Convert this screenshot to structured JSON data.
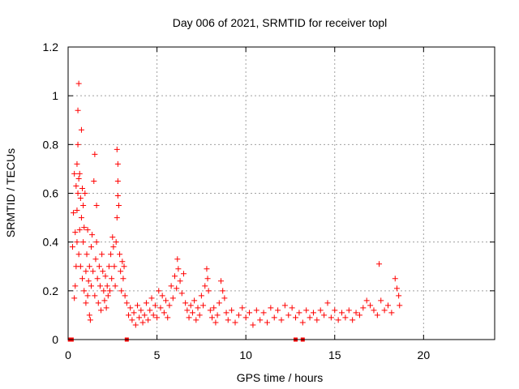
{
  "chart_data": {
    "type": "scatter",
    "title": "Day 006 of 2021, SRMTID for receiver topl",
    "xlabel": "GPS time / hours",
    "ylabel": "SRMTID / TECUs",
    "xlim": [
      0,
      24
    ],
    "ylim": [
      0,
      1.2
    ],
    "x_ticks": [
      0,
      5,
      10,
      15,
      20
    ],
    "y_ticks": [
      0,
      0.2,
      0.4,
      0.6,
      0.8,
      1,
      1.2
    ],
    "x_tick_labels": [
      "0",
      "5",
      "10",
      "15",
      "20"
    ],
    "y_tick_labels": [
      "0",
      "0.2",
      "0.4",
      "0.6",
      "0.8",
      "1",
      "1.2"
    ],
    "grid": true,
    "marker": "plus",
    "color": "#ff0000",
    "data_gap_markers_x": [
      0.1,
      0.2,
      3.3,
      12.8,
      13.2
    ],
    "series": [
      {
        "name": "SRMTID",
        "points": [
          [
            0.25,
            0.38
          ],
          [
            0.3,
            0.52
          ],
          [
            0.35,
            0.17
          ],
          [
            0.35,
            0.68
          ],
          [
            0.4,
            0.22
          ],
          [
            0.4,
            0.44
          ],
          [
            0.45,
            0.3
          ],
          [
            0.45,
            0.63
          ],
          [
            0.5,
            0.72
          ],
          [
            0.5,
            0.53
          ],
          [
            0.5,
            0.4
          ],
          [
            0.55,
            0.8
          ],
          [
            0.55,
            0.94
          ],
          [
            0.55,
            0.6
          ],
          [
            0.6,
            0.35
          ],
          [
            0.6,
            1.05
          ],
          [
            0.6,
            0.66
          ],
          [
            0.65,
            0.68
          ],
          [
            0.65,
            0.45
          ],
          [
            0.7,
            0.58
          ],
          [
            0.7,
            0.3
          ],
          [
            0.75,
            0.86
          ],
          [
            0.75,
            0.5
          ],
          [
            0.8,
            0.62
          ],
          [
            0.8,
            0.25
          ],
          [
            0.85,
            0.4
          ],
          [
            0.85,
            0.55
          ],
          [
            0.9,
            0.2
          ],
          [
            0.9,
            0.46
          ],
          [
            0.95,
            0.6
          ],
          [
            1.0,
            0.28
          ],
          [
            1.0,
            0.15
          ],
          [
            1.05,
            0.35
          ],
          [
            1.1,
            0.18
          ],
          [
            1.1,
            0.45
          ],
          [
            1.15,
            0.24
          ],
          [
            1.2,
            0.1
          ],
          [
            1.2,
            0.3
          ],
          [
            1.25,
            0.08
          ],
          [
            1.3,
            0.38
          ],
          [
            1.3,
            0.22
          ],
          [
            1.35,
            0.43
          ],
          [
            1.4,
            0.28
          ],
          [
            1.45,
            0.65
          ],
          [
            1.5,
            0.76
          ],
          [
            1.5,
            0.18
          ],
          [
            1.55,
            0.33
          ],
          [
            1.6,
            0.55
          ],
          [
            1.6,
            0.4
          ],
          [
            1.65,
            0.25
          ],
          [
            1.7,
            0.15
          ],
          [
            1.75,
            0.3
          ],
          [
            1.8,
            0.22
          ],
          [
            1.85,
            0.12
          ],
          [
            1.9,
            0.35
          ],
          [
            1.95,
            0.28
          ],
          [
            2.0,
            0.2
          ],
          [
            2.05,
            0.16
          ],
          [
            2.1,
            0.26
          ],
          [
            2.15,
            0.13
          ],
          [
            2.2,
            0.22
          ],
          [
            2.25,
            0.18
          ],
          [
            2.3,
            0.3
          ],
          [
            2.35,
            0.2
          ],
          [
            2.4,
            0.35
          ],
          [
            2.45,
            0.25
          ],
          [
            2.5,
            0.42
          ],
          [
            2.55,
            0.38
          ],
          [
            2.6,
            0.3
          ],
          [
            2.65,
            0.22
          ],
          [
            2.7,
            0.4
          ],
          [
            2.75,
            0.78
          ],
          [
            2.75,
            0.5
          ],
          [
            2.8,
            0.72
          ],
          [
            2.8,
            0.65
          ],
          [
            2.8,
            0.59
          ],
          [
            2.85,
            0.55
          ],
          [
            2.9,
            0.35
          ],
          [
            2.95,
            0.28
          ],
          [
            3.0,
            0.2
          ],
          [
            3.05,
            0.32
          ],
          [
            3.1,
            0.25
          ],
          [
            3.15,
            0.3
          ],
          [
            3.2,
            0.18
          ],
          [
            3.3,
            0.15
          ],
          [
            3.4,
            0.1
          ],
          [
            3.5,
            0.13
          ],
          [
            3.6,
            0.08
          ],
          [
            3.7,
            0.11
          ],
          [
            3.8,
            0.06
          ],
          [
            3.9,
            0.14
          ],
          [
            4.0,
            0.09
          ],
          [
            4.1,
            0.12
          ],
          [
            4.2,
            0.07
          ],
          [
            4.3,
            0.1
          ],
          [
            4.4,
            0.15
          ],
          [
            4.5,
            0.08
          ],
          [
            4.6,
            0.12
          ],
          [
            4.7,
            0.17
          ],
          [
            4.8,
            0.1
          ],
          [
            4.9,
            0.14
          ],
          [
            5.0,
            0.09
          ],
          [
            5.1,
            0.2
          ],
          [
            5.2,
            0.13
          ],
          [
            5.3,
            0.18
          ],
          [
            5.4,
            0.11
          ],
          [
            5.5,
            0.16
          ],
          [
            5.6,
            0.09
          ],
          [
            5.7,
            0.14
          ],
          [
            5.8,
            0.22
          ],
          [
            5.9,
            0.17
          ],
          [
            6.0,
            0.26
          ],
          [
            6.1,
            0.21
          ],
          [
            6.15,
            0.33
          ],
          [
            6.2,
            0.29
          ],
          [
            6.3,
            0.24
          ],
          [
            6.4,
            0.19
          ],
          [
            6.5,
            0.27
          ],
          [
            6.6,
            0.15
          ],
          [
            6.7,
            0.12
          ],
          [
            6.8,
            0.09
          ],
          [
            6.9,
            0.14
          ],
          [
            7.0,
            0.11
          ],
          [
            7.1,
            0.16
          ],
          [
            7.2,
            0.08
          ],
          [
            7.3,
            0.13
          ],
          [
            7.4,
            0.1
          ],
          [
            7.5,
            0.18
          ],
          [
            7.6,
            0.14
          ],
          [
            7.7,
            0.22
          ],
          [
            7.8,
            0.29
          ],
          [
            7.85,
            0.25
          ],
          [
            7.9,
            0.2
          ],
          [
            8.0,
            0.12
          ],
          [
            8.1,
            0.09
          ],
          [
            8.2,
            0.13
          ],
          [
            8.3,
            0.07
          ],
          [
            8.4,
            0.1
          ],
          [
            8.5,
            0.15
          ],
          [
            8.6,
            0.24
          ],
          [
            8.7,
            0.2
          ],
          [
            8.8,
            0.17
          ],
          [
            8.9,
            0.11
          ],
          [
            9.0,
            0.08
          ],
          [
            9.2,
            0.12
          ],
          [
            9.4,
            0.07
          ],
          [
            9.6,
            0.1
          ],
          [
            9.8,
            0.13
          ],
          [
            10.0,
            0.09
          ],
          [
            10.2,
            0.11
          ],
          [
            10.4,
            0.06
          ],
          [
            10.6,
            0.12
          ],
          [
            10.8,
            0.08
          ],
          [
            11.0,
            0.11
          ],
          [
            11.2,
            0.07
          ],
          [
            11.4,
            0.13
          ],
          [
            11.6,
            0.09
          ],
          [
            11.8,
            0.12
          ],
          [
            12.0,
            0.08
          ],
          [
            12.2,
            0.14
          ],
          [
            12.4,
            0.1
          ],
          [
            12.6,
            0.13
          ],
          [
            12.8,
            0.09
          ],
          [
            13.0,
            0.11
          ],
          [
            13.2,
            0.07
          ],
          [
            13.4,
            0.12
          ],
          [
            13.6,
            0.09
          ],
          [
            13.8,
            0.11
          ],
          [
            14.0,
            0.08
          ],
          [
            14.2,
            0.12
          ],
          [
            14.4,
            0.1
          ],
          [
            14.6,
            0.15
          ],
          [
            14.8,
            0.09
          ],
          [
            15.0,
            0.12
          ],
          [
            15.2,
            0.08
          ],
          [
            15.4,
            0.11
          ],
          [
            15.6,
            0.09
          ],
          [
            15.8,
            0.12
          ],
          [
            16.0,
            0.08
          ],
          [
            16.2,
            0.11
          ],
          [
            16.4,
            0.1
          ],
          [
            16.6,
            0.13
          ],
          [
            16.8,
            0.16
          ],
          [
            17.0,
            0.14
          ],
          [
            17.2,
            0.12
          ],
          [
            17.4,
            0.1
          ],
          [
            17.5,
            0.31
          ],
          [
            17.6,
            0.16
          ],
          [
            17.8,
            0.12
          ],
          [
            18.0,
            0.14
          ],
          [
            18.2,
            0.11
          ],
          [
            18.4,
            0.25
          ],
          [
            18.5,
            0.21
          ],
          [
            18.6,
            0.18
          ],
          [
            18.65,
            0.14
          ]
        ]
      }
    ]
  }
}
